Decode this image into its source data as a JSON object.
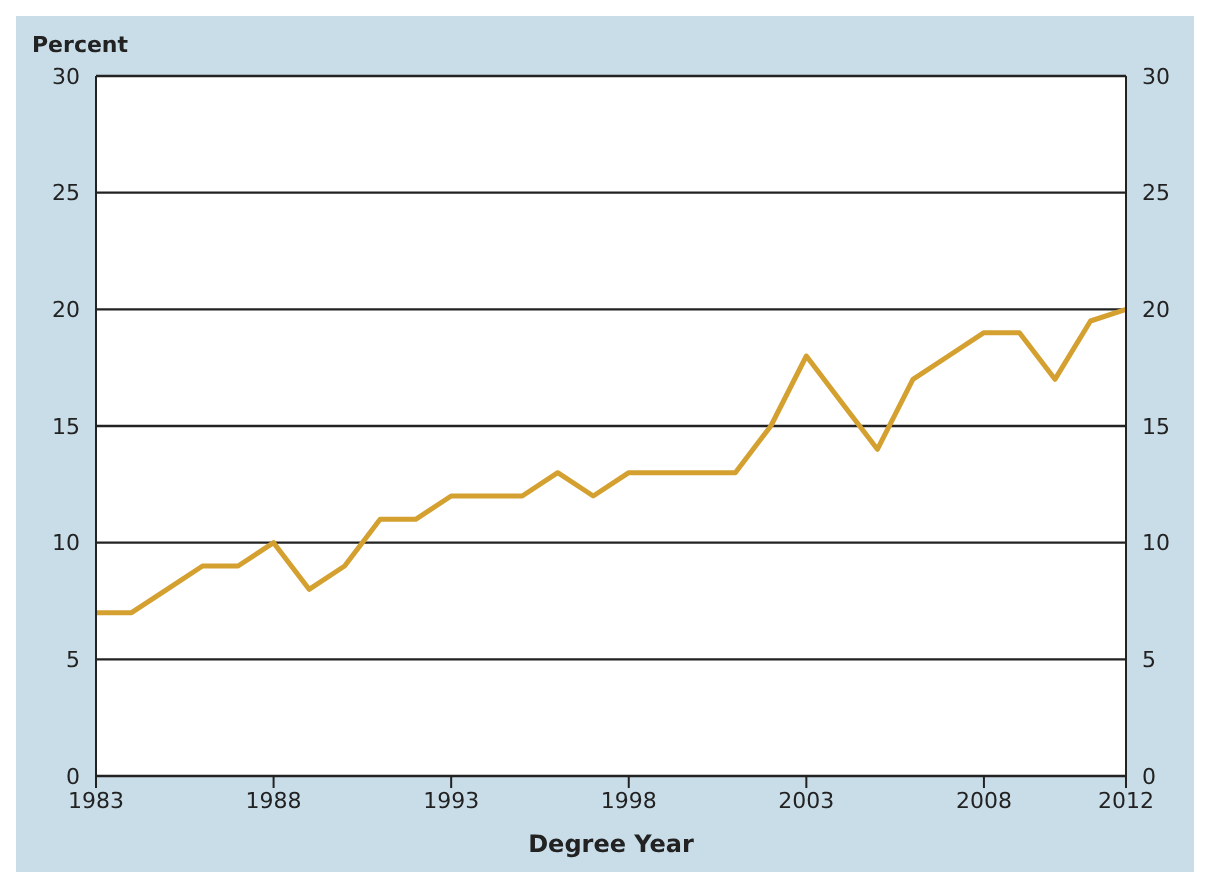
{
  "chart_data": {
    "type": "line",
    "ylabel": "Percent",
    "xlabel": "Degree Year",
    "x": [
      1983,
      1984,
      1985,
      1986,
      1987,
      1988,
      1989,
      1990,
      1991,
      1992,
      1993,
      1994,
      1995,
      1996,
      1997,
      1998,
      1999,
      2000,
      2001,
      2002,
      2003,
      2004,
      2005,
      2006,
      2007,
      2008,
      2009,
      2010,
      2011,
      2012
    ],
    "series": [
      {
        "color": "#d4a030",
        "values": [
          7,
          7,
          8,
          9,
          9,
          10,
          8,
          9,
          11,
          11,
          12,
          12,
          12,
          13,
          12,
          13,
          13,
          13,
          13,
          15,
          18,
          16,
          14,
          17,
          18,
          19,
          19,
          17,
          19.5,
          20
        ]
      }
    ],
    "xlim": [
      1983,
      2012
    ],
    "xticks": [
      1983,
      1988,
      1993,
      1998,
      2003,
      2008,
      2012
    ],
    "ylim": [
      0,
      30
    ],
    "yticks": [
      0,
      5,
      10,
      15,
      20,
      25,
      30
    ],
    "y2lim": [
      0,
      30
    ],
    "y2ticks": [
      0,
      5,
      10,
      15,
      20,
      25,
      30
    ],
    "grid": "y",
    "legend": false,
    "marker": "none",
    "line_style": "solid"
  }
}
